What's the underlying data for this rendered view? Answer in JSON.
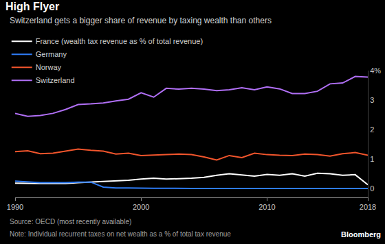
{
  "chart_data": {
    "type": "line",
    "title": "High Flyer",
    "subtitle": "Switzerland gets a bigger share of revenue by taxing wealth than others",
    "annotations": [
      "Source: OECD (most recently available)",
      "Note: Individual recurrent taxes on net wealth as a % of total tax revenue",
      "Bloomberg"
    ],
    "x": [
      1990,
      1991,
      1992,
      1993,
      1994,
      1995,
      1996,
      1997,
      1998,
      1999,
      2000,
      2001,
      2002,
      2003,
      2004,
      2005,
      2006,
      2007,
      2008,
      2009,
      2010,
      2011,
      2012,
      2013,
      2014,
      2015,
      2016,
      2017,
      2018
    ],
    "series": [
      {
        "name": "France (wealth tax revenue as % of total revenue)",
        "color": "#ffffff",
        "values": [
          0.18,
          0.17,
          0.17,
          0.17,
          0.17,
          0.2,
          0.22,
          0.24,
          0.26,
          0.28,
          0.32,
          0.35,
          0.32,
          0.33,
          0.35,
          0.38,
          0.45,
          0.5,
          0.46,
          0.42,
          0.48,
          0.45,
          0.5,
          0.42,
          0.52,
          0.5,
          0.45,
          0.47,
          0.13
        ]
      },
      {
        "name": "Germany",
        "color": "#2e7cf6",
        "values": [
          0.25,
          0.22,
          0.2,
          0.2,
          0.2,
          0.22,
          0.22,
          0.05,
          0.02,
          0.02,
          0.01,
          0.01,
          0.01,
          0,
          0,
          0,
          0,
          0,
          0,
          0,
          0,
          0,
          0,
          0,
          0,
          0,
          0,
          0,
          0
        ]
      },
      {
        "name": "Norway",
        "color": "#f2552c",
        "values": [
          1.25,
          1.28,
          1.18,
          1.2,
          1.27,
          1.34,
          1.3,
          1.27,
          1.17,
          1.2,
          1.12,
          1.13,
          1.15,
          1.17,
          1.15,
          1.07,
          0.97,
          1.12,
          1.05,
          1.2,
          1.15,
          1.13,
          1.12,
          1.17,
          1.15,
          1.1,
          1.18,
          1.22,
          1.13
        ]
      },
      {
        "name": "Switzerland",
        "color": "#b06ff5",
        "values": [
          2.55,
          2.45,
          2.48,
          2.55,
          2.68,
          2.85,
          2.87,
          2.9,
          2.97,
          3.03,
          3.25,
          3.1,
          3.4,
          3.37,
          3.4,
          3.37,
          3.32,
          3.35,
          3.42,
          3.35,
          3.45,
          3.38,
          3.22,
          3.22,
          3.3,
          3.55,
          3.58,
          3.8,
          3.78
        ]
      }
    ],
    "xlim": [
      1990,
      2018
    ],
    "xticks": [
      1990,
      2000,
      2010,
      2018
    ],
    "ylim": [
      -0.3,
      4
    ],
    "yticks": [
      0,
      1,
      2,
      3,
      {
        "value": 4,
        "label": "4%"
      }
    ],
    "grid": false,
    "legend": "top-left"
  }
}
